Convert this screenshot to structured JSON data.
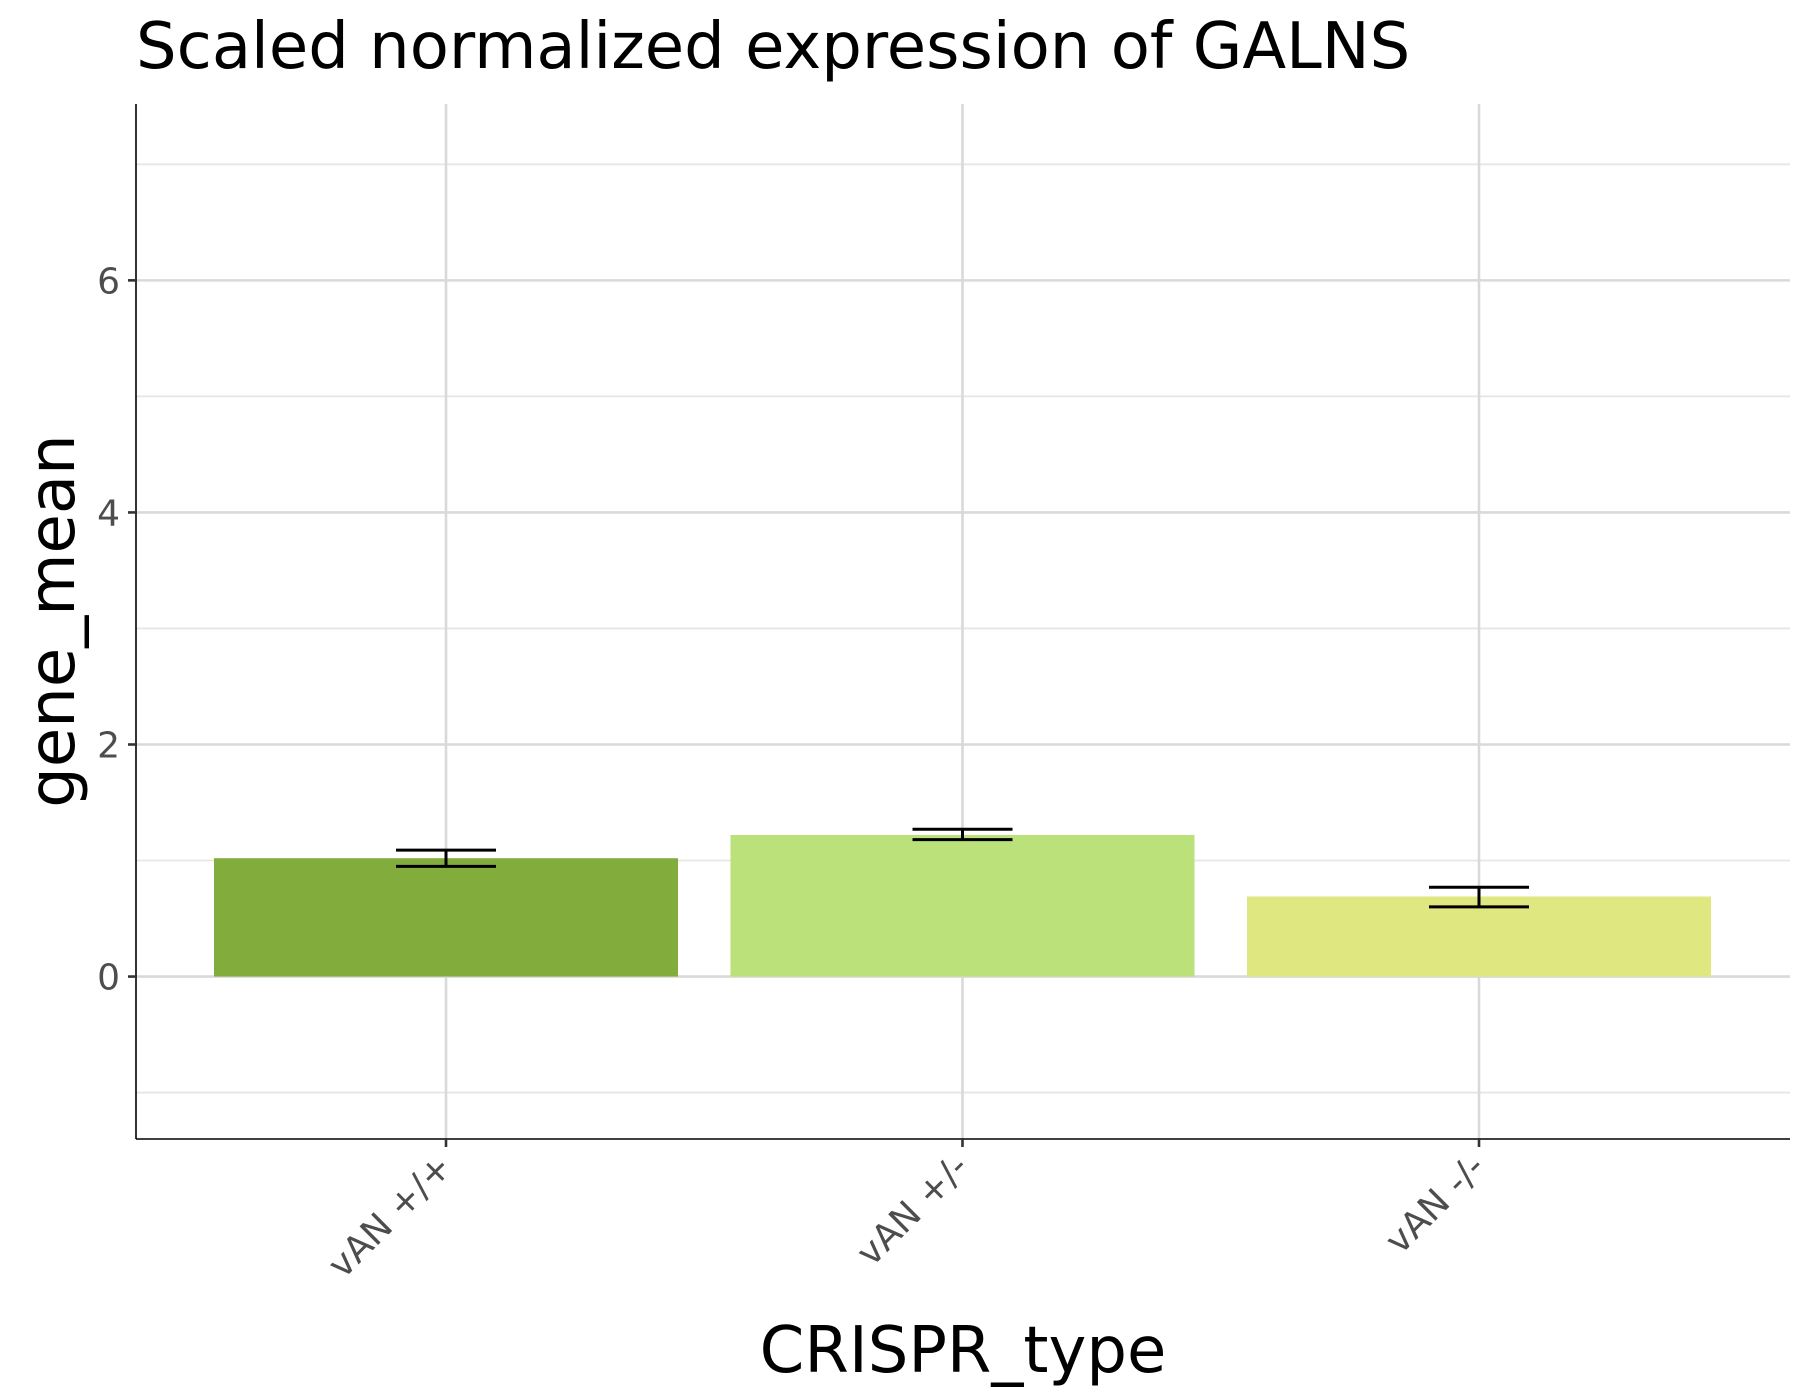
{
  "chart_data": {
    "type": "bar",
    "title": "Scaled normalized expression of GALNS",
    "xlabel": "CRISPR_type",
    "ylabel": "gene_mean",
    "categories": [
      "vAN +/+",
      "vAN +/-",
      "vAN -/-"
    ],
    "values": [
      1.02,
      1.22,
      0.69
    ],
    "error_low": [
      0.95,
      1.18,
      0.6
    ],
    "error_high": [
      1.09,
      1.27,
      0.77
    ],
    "colors": [
      "#82ad3c",
      "#bbe27a",
      "#dee780"
    ],
    "ylim": [
      -1.4,
      7.52
    ],
    "yticks": [
      0,
      2,
      4,
      6
    ],
    "yminor": [
      -1,
      1,
      3,
      5,
      7
    ],
    "grid": true,
    "legend": "none"
  }
}
